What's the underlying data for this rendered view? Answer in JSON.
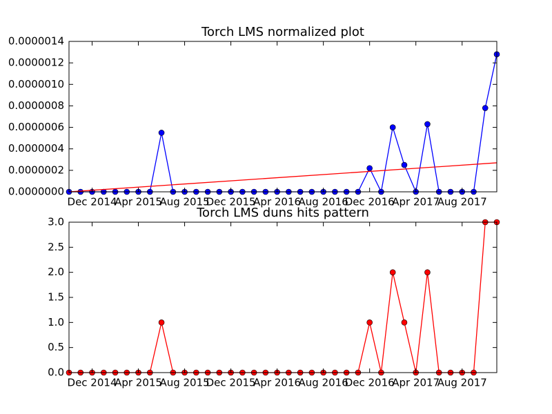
{
  "chart_data": [
    {
      "type": "line",
      "title": "Torch LMS normalized plot",
      "x": [
        "2014-10",
        "2014-11",
        "2014-12",
        "2015-01",
        "2015-02",
        "2015-03",
        "2015-04",
        "2015-05",
        "2015-06",
        "2015-07",
        "2015-08",
        "2015-09",
        "2015-10",
        "2015-11",
        "2015-12",
        "2016-01",
        "2016-02",
        "2016-03",
        "2016-04",
        "2016-05",
        "2016-06",
        "2016-07",
        "2016-08",
        "2016-09",
        "2016-10",
        "2016-11",
        "2016-12",
        "2017-01",
        "2017-02",
        "2017-03",
        "2017-04",
        "2017-05",
        "2017-06",
        "2017-07",
        "2017-08",
        "2017-09",
        "2017-10",
        "2017-11"
      ],
      "series": [
        {
          "color": "#0000ff",
          "marker_color": "#0000ff",
          "values": [
            0,
            0,
            0,
            0,
            0,
            0,
            0,
            0,
            5.5e-07,
            0,
            0,
            0,
            0,
            0,
            0,
            0,
            0,
            0,
            0,
            0,
            0,
            0,
            0,
            0,
            0,
            0,
            2.2e-07,
            0,
            6e-07,
            2.5e-07,
            0,
            6.3e-07,
            0,
            0,
            0,
            0,
            7.8e-07,
            1.28e-06
          ]
        },
        {
          "color": "#ff0000",
          "x": [
            "2014-10",
            "2017-11"
          ],
          "values": [
            0,
            2.7e-07
          ]
        }
      ],
      "xlim": [
        "2014-10",
        "2017-11"
      ],
      "xticks": [
        {
          "value": "2014-12",
          "label": "Dec 2014"
        },
        {
          "value": "2015-04",
          "label": "Apr 2015"
        },
        {
          "value": "2015-08",
          "label": "Aug 2015"
        },
        {
          "value": "2015-12",
          "label": "Dec 2015"
        },
        {
          "value": "2016-04",
          "label": "Apr 2016"
        },
        {
          "value": "2016-08",
          "label": "Aug 2016"
        },
        {
          "value": "2016-12",
          "label": "Dec 2016"
        },
        {
          "value": "2017-04",
          "label": "Apr 2017"
        },
        {
          "value": "2017-08",
          "label": "Aug 2017"
        }
      ],
      "ylim": [
        0,
        1.4e-06
      ],
      "yticks": [
        {
          "value": 0,
          "label": "0.0000000"
        },
        {
          "value": 2e-07,
          "label": "0.0000002"
        },
        {
          "value": 4e-07,
          "label": "0.0000004"
        },
        {
          "value": 6e-07,
          "label": "0.0000006"
        },
        {
          "value": 8e-07,
          "label": "0.0000008"
        },
        {
          "value": 1e-06,
          "label": "0.0000010"
        },
        {
          "value": 1.2e-06,
          "label": "0.0000012"
        },
        {
          "value": 1.4e-06,
          "label": "0.0000014"
        }
      ]
    },
    {
      "type": "line",
      "title": "Torch LMS duns hits pattern",
      "x": [
        "2014-10",
        "2014-11",
        "2014-12",
        "2015-01",
        "2015-02",
        "2015-03",
        "2015-04",
        "2015-05",
        "2015-06",
        "2015-07",
        "2015-08",
        "2015-09",
        "2015-10",
        "2015-11",
        "2015-12",
        "2016-01",
        "2016-02",
        "2016-03",
        "2016-04",
        "2016-05",
        "2016-06",
        "2016-07",
        "2016-08",
        "2016-09",
        "2016-10",
        "2016-11",
        "2016-12",
        "2017-01",
        "2017-02",
        "2017-03",
        "2017-04",
        "2017-05",
        "2017-06",
        "2017-07",
        "2017-08",
        "2017-09",
        "2017-10",
        "2017-11"
      ],
      "series": [
        {
          "color": "#ff0000",
          "marker_color": "#ff0000",
          "values": [
            0,
            0,
            0,
            0,
            0,
            0,
            0,
            0,
            1,
            0,
            0,
            0,
            0,
            0,
            0,
            0,
            0,
            0,
            0,
            0,
            0,
            0,
            0,
            0,
            0,
            0,
            1,
            0,
            2,
            1,
            0,
            2,
            0,
            0,
            0,
            0,
            3,
            3
          ]
        }
      ],
      "xlim": [
        "2014-10",
        "2017-11"
      ],
      "xticks": [
        {
          "value": "2014-12",
          "label": "Dec 2014"
        },
        {
          "value": "2015-04",
          "label": "Apr 2015"
        },
        {
          "value": "2015-08",
          "label": "Aug 2015"
        },
        {
          "value": "2015-12",
          "label": "Dec 2015"
        },
        {
          "value": "2016-04",
          "label": "Apr 2016"
        },
        {
          "value": "2016-08",
          "label": "Aug 2016"
        },
        {
          "value": "2016-12",
          "label": "Dec 2016"
        },
        {
          "value": "2017-04",
          "label": "Apr 2017"
        },
        {
          "value": "2017-08",
          "label": "Aug 2017"
        }
      ],
      "ylim": [
        0,
        3
      ],
      "yticks": [
        {
          "value": 0,
          "label": "0.0"
        },
        {
          "value": 0.5,
          "label": "0.5"
        },
        {
          "value": 1,
          "label": "1.0"
        },
        {
          "value": 1.5,
          "label": "1.5"
        },
        {
          "value": 2,
          "label": "2.0"
        },
        {
          "value": 2.5,
          "label": "2.5"
        },
        {
          "value": 3,
          "label": "3.0"
        }
      ]
    }
  ]
}
